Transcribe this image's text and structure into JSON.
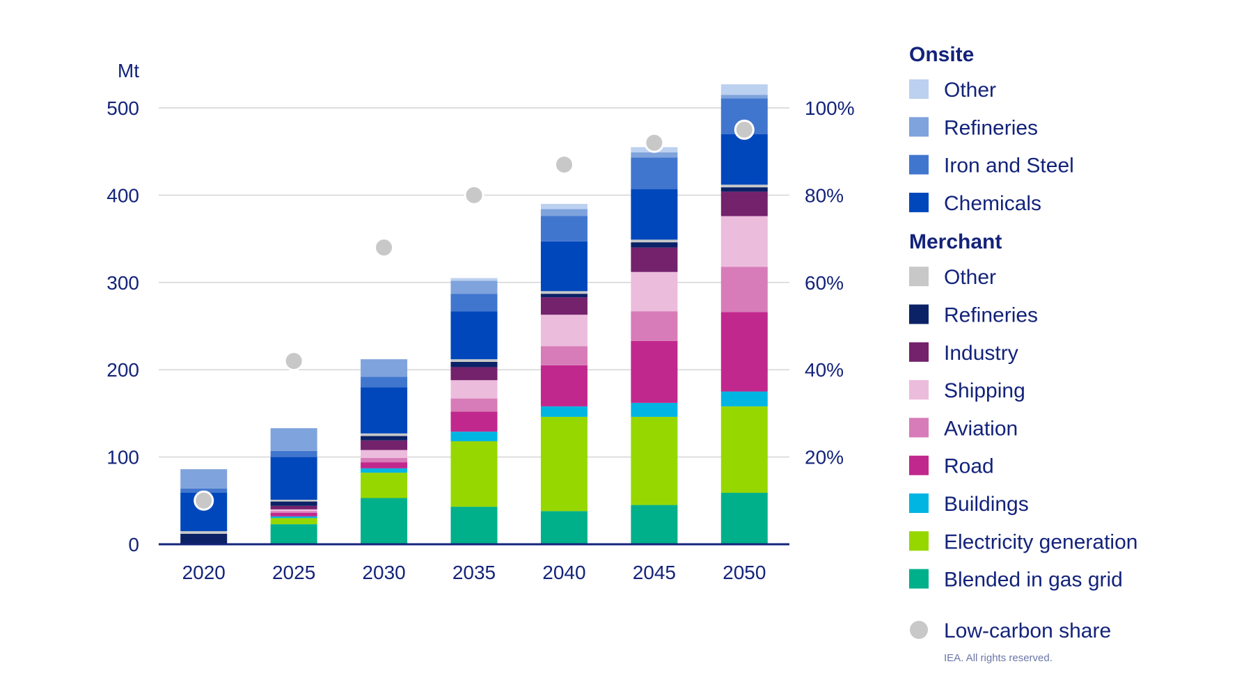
{
  "chart_data": {
    "type": "bar",
    "stacked": true,
    "ylabel": "Mt",
    "ylim": [
      0,
      500
    ],
    "yticks": [
      "0",
      "100",
      "200",
      "300",
      "400",
      "500"
    ],
    "y2ticks": [
      "20%",
      "40%",
      "60%",
      "80%",
      "100%"
    ],
    "y2lim": [
      0,
      100
    ],
    "grid": true,
    "legend_position": "right",
    "categories": [
      "2020",
      "2025",
      "2030",
      "2035",
      "2040",
      "2045",
      "2050"
    ],
    "groups": [
      {
        "name": "Onsite",
        "series": [
          {
            "name": "Other",
            "color": "#bcd0f0",
            "values": [
              0,
              0,
              0,
              3,
              6,
              6,
              12
            ]
          },
          {
            "name": "Refineries",
            "color": "#7fa3dc",
            "values": [
              22,
              26,
              20,
              15,
              8,
              6,
              4
            ]
          },
          {
            "name": "Iron and Steel",
            "color": "#4176cf",
            "values": [
              5,
              7,
              12,
              20,
              29,
              36,
              41
            ]
          },
          {
            "name": "Chemicals",
            "color": "#0047bb",
            "values": [
              44,
              49,
              53,
              55,
              57,
              58,
              58
            ]
          }
        ]
      },
      {
        "name": "Merchant",
        "series": [
          {
            "name": "Other",
            "color": "#c8c8c8",
            "values": [
              3,
              2,
              3,
              3,
              3,
              3,
              3
            ]
          },
          {
            "name": "Refineries",
            "color": "#0c2266",
            "values": [
              12,
              5,
              5,
              6,
              4,
              6,
              5
            ]
          },
          {
            "name": "Industry",
            "color": "#74226c",
            "values": [
              0,
              4,
              11,
              15,
              20,
              28,
              28
            ]
          },
          {
            "name": "Shipping",
            "color": "#ecbcdc",
            "values": [
              0,
              2,
              9,
              21,
              36,
              45,
              58
            ]
          },
          {
            "name": "Aviation",
            "color": "#d77cb8",
            "values": [
              0,
              2,
              5,
              15,
              22,
              34,
              52
            ]
          },
          {
            "name": "Road",
            "color": "#c1288d",
            "values": [
              0,
              4,
              7,
              23,
              47,
              71,
              91
            ]
          },
          {
            "name": "Buildings",
            "color": "#00b5e2",
            "values": [
              0,
              2,
              5,
              11,
              12,
              16,
              17
            ]
          },
          {
            "name": "Electricity generation",
            "color": "#97d700",
            "values": [
              0,
              7,
              29,
              75,
              108,
              101,
              99
            ]
          },
          {
            "name": "Blended in gas grid",
            "color": "#00b08a",
            "values": [
              0,
              23,
              53,
              43,
              38,
              45,
              59
            ]
          }
        ]
      }
    ],
    "line_series": {
      "name": "Low-carbon share",
      "color": "#c8c8c8",
      "axis": "right",
      "values": [
        10,
        42,
        68,
        80,
        87,
        92,
        95
      ]
    },
    "credit": "IEA. All rights reserved."
  }
}
